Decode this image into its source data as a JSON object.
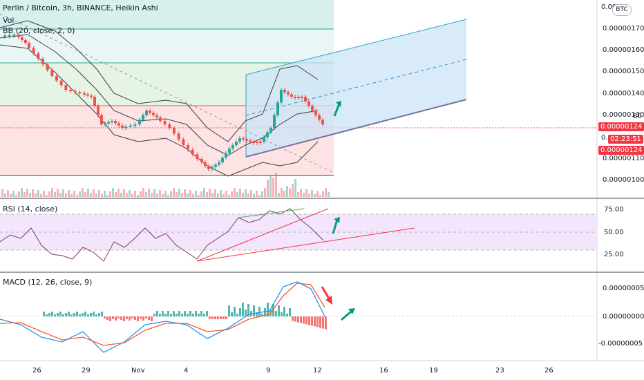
{
  "legend": {
    "title": "Perlin / Bitcoin, 3h, BINANCE, Heikin Ashi",
    "vol": "Vol",
    "bb": "BB (20, close, 2, 0)",
    "rsi": "RSI (14, close)",
    "macd": "MACD (12, 26, close, 9)"
  },
  "price_axis": {
    "top_partial": "0.00",
    "labels": [
      "0.00000170",
      "0.00000160",
      "0.00000150",
      "0.00000140",
      "0.00000130",
      "0.00000120",
      "0.00000110",
      "0.00000100"
    ],
    "currency_badge": "BTC",
    "current_price": "0.00000124",
    "countdown": "02:23:51",
    "last_price": "0.00000124",
    "partial_labels": [
      "80",
      "0."
    ]
  },
  "rsi_axis": {
    "labels": [
      "75.00",
      "50.00",
      "25.00"
    ]
  },
  "macd_axis": {
    "labels": [
      "0.00000005",
      "0.00000000",
      "-0.00000005"
    ]
  },
  "time_axis": {
    "labels": [
      "26",
      "29",
      "Nov",
      "4",
      "9",
      "12",
      "16",
      "19",
      "23",
      "26"
    ]
  },
  "colors": {
    "up": "#26a69a",
    "down": "#ef5350",
    "bb": "#3d3d3d",
    "rsi_line": "#7e3a5e",
    "rsi_band": "#f3e5fb",
    "macd_line": "#2196f3",
    "signal_line": "#ff5722",
    "green_zone": "#e6f4e6",
    "teal_zone": "#d7efed",
    "red_zone": "#fde3e3",
    "channel": "#cce4f7",
    "accent_red": "#f23645",
    "accent_green": "#089981"
  }
}
